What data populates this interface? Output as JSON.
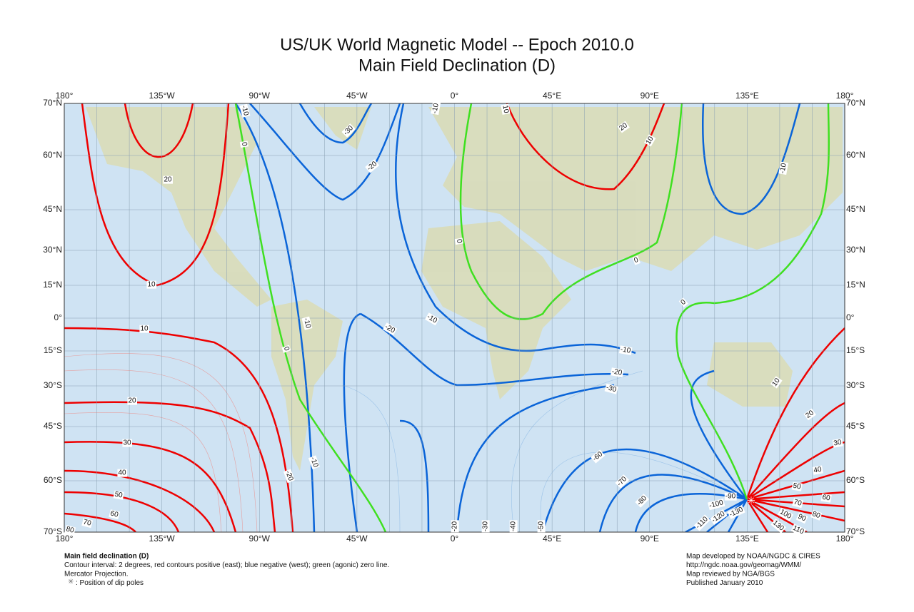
{
  "header": {
    "title": "US/UK World Magnetic Model -- Epoch 2010.0",
    "subtitle": "Main Field Declination (D)"
  },
  "map": {
    "lon_labels": [
      "180°",
      "135°W",
      "90°W",
      "45°W",
      "0°",
      "45°E",
      "90°E",
      "135°E",
      "180°"
    ],
    "lat_labels": [
      "70°N",
      "60°N",
      "45°N",
      "30°N",
      "15°N",
      "0°",
      "15°S",
      "30°S",
      "45°S",
      "60°S",
      "70°S"
    ],
    "contour_labels": [
      "-10",
      "-30",
      "-20",
      "-10",
      "10",
      "20",
      "10",
      "-10",
      "0",
      "20",
      "0",
      "0",
      "10",
      "0",
      "-10",
      "-20",
      "-10",
      "10",
      "0",
      "-10",
      "-20",
      "-30",
      "10",
      "20",
      "20",
      "30",
      "30",
      "-10",
      "-20",
      "40",
      "-60",
      "-70",
      "40",
      "50",
      "50",
      "-80",
      "-90",
      "60",
      "60",
      "-100",
      "70",
      "70",
      "80",
      "-110",
      "-120",
      "-130",
      "100",
      "90",
      "110",
      "130",
      "80",
      "-20",
      "-30",
      "-40",
      "-50"
    ]
  },
  "footer": {
    "left": [
      "Main field declination (D)",
      "Contour interval: 2 degrees, red contours positive (east); blue negative (west); green (agonic) zero line.",
      "Mercator Projection.",
      ": Position of dip poles"
    ],
    "right": [
      "Map developed by NOAA/NGDC & CIRES",
      "http://ngdc.noaa.gov/geomag/WMM/",
      "Map reviewed by NGA/BGS",
      "Published January 2010"
    ]
  }
}
